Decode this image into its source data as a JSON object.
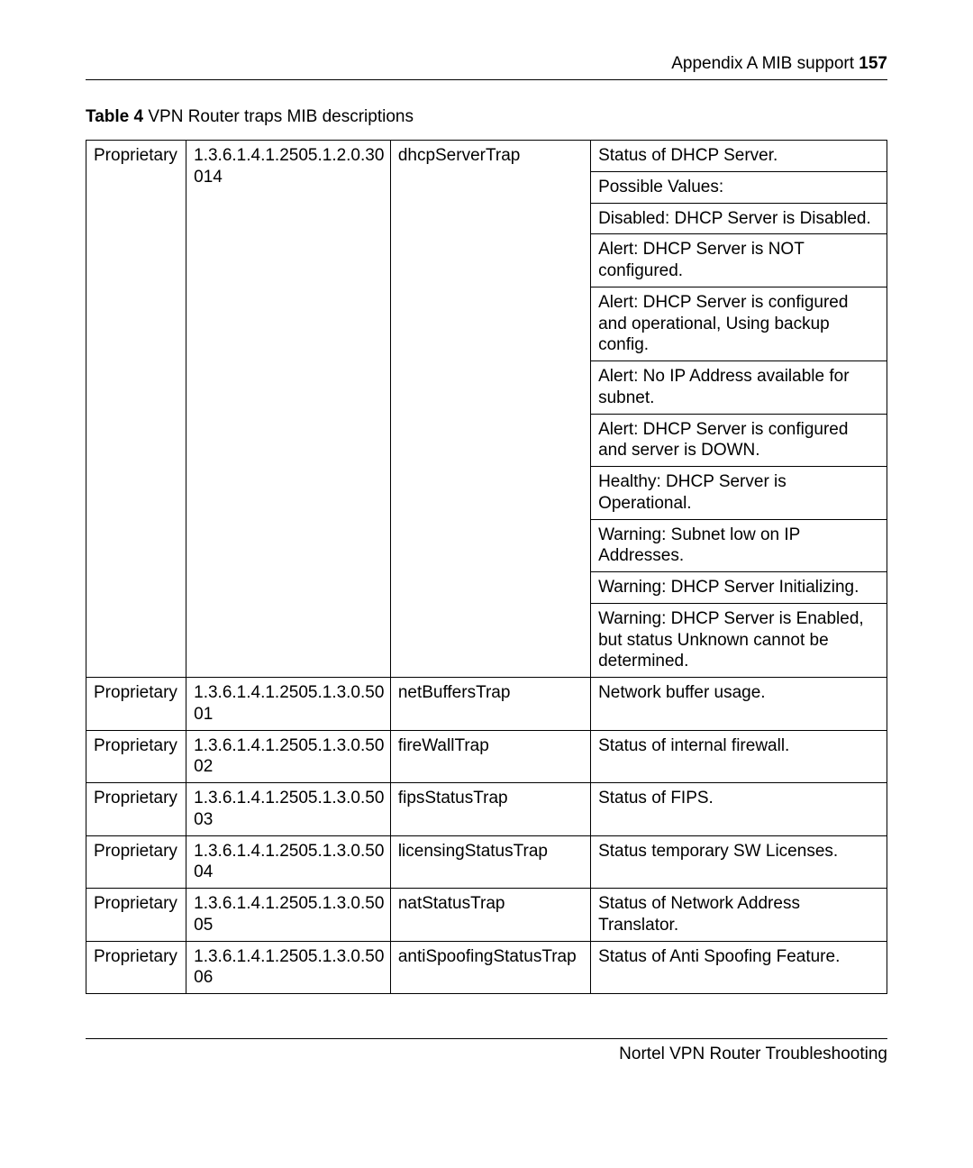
{
  "header": {
    "appendix_text": "Appendix A  MIB support ",
    "page_number": "157"
  },
  "caption": {
    "label": "Table 4",
    "title": "   VPN Router traps MIB descriptions"
  },
  "table": {
    "rows": [
      {
        "type": "Proprietary",
        "oid": "1.3.6.1.4.1.2505.1.2.0.30014",
        "name": "dhcpServerTrap",
        "desc_lines": [
          "Status of DHCP Server.",
          "Possible Values:",
          "Disabled: DHCP Server is Disabled.",
          "Alert: DHCP Server is NOT configured.",
          "Alert: DHCP Server is configured and operational, Using backup config.",
          "Alert: No IP Address available for subnet.",
          "Alert: DHCP Server is configured and server is DOWN.",
          "Healthy: DHCP Server is Operational.",
          "Warning: Subnet low on IP Addresses.",
          "Warning: DHCP Server Initializing.",
          "Warning: DHCP Server is Enabled, but status Unknown cannot be determined."
        ]
      },
      {
        "type": "Proprietary",
        "oid": "1.3.6.1.4.1.2505.1.3.0.5001",
        "name": "netBuffersTrap",
        "desc_lines": [
          "Network buffer usage."
        ]
      },
      {
        "type": "Proprietary",
        "oid": "1.3.6.1.4.1.2505.1.3.0.5002",
        "name": "fireWallTrap",
        "desc_lines": [
          "Status of internal firewall."
        ]
      },
      {
        "type": "Proprietary",
        "oid": "1.3.6.1.4.1.2505.1.3.0.5003",
        "name": "fipsStatusTrap",
        "desc_lines": [
          "Status of FIPS."
        ]
      },
      {
        "type": "Proprietary",
        "oid": "1.3.6.1.4.1.2505.1.3.0.5004",
        "name": "licensingStatusTrap",
        "desc_lines": [
          "Status temporary SW Licenses."
        ]
      },
      {
        "type": "Proprietary",
        "oid": "1.3.6.1.4.1.2505.1.3.0.5005",
        "name": "natStatusTrap",
        "desc_lines": [
          "Status of Network Address Translator."
        ]
      },
      {
        "type": "Proprietary",
        "oid": "1.3.6.1.4.1.2505.1.3.0.5006",
        "name": "antiSpoofingStatusTrap",
        "desc_lines": [
          "Status of Anti Spoofing Feature."
        ]
      }
    ]
  },
  "footer": {
    "text": "Nortel VPN Router Troubleshooting"
  }
}
